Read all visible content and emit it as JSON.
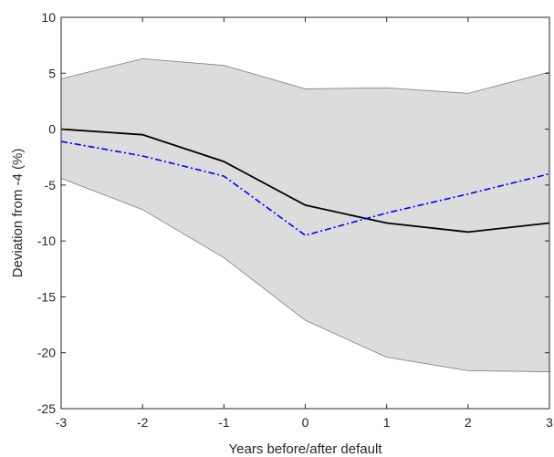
{
  "chart_data": {
    "type": "line",
    "title": "",
    "xlabel": "Years before/after default",
    "ylabel": "Deviation from -4 (%)",
    "xlim": [
      -3,
      3
    ],
    "ylim": [
      -25,
      10
    ],
    "x_ticks": [
      -3,
      -2,
      -1,
      0,
      1,
      2,
      3
    ],
    "y_ticks": [
      -25,
      -20,
      -15,
      -10,
      -5,
      0,
      5,
      10
    ],
    "x_tick_labels": [
      "-3",
      "-2",
      "-1",
      "0",
      "1",
      "2",
      "3"
    ],
    "y_tick_labels": [
      "-25",
      "-20",
      "-15",
      "-10",
      "-5",
      "0",
      "5",
      "10"
    ],
    "grid": false,
    "x": [
      -3,
      -2,
      -1,
      0,
      1,
      2,
      3
    ],
    "band": {
      "upper": [
        4.5,
        6.3,
        5.7,
        3.6,
        3.7,
        3.2,
        5.1
      ],
      "lower": [
        -4.4,
        -7.2,
        -11.5,
        -17.1,
        -20.4,
        -21.6,
        -21.7
      ],
      "fill_color": "#dcdcdc",
      "edge_color": "#808080"
    },
    "series": [
      {
        "values": [
          0.0,
          -0.5,
          -2.9,
          -6.8,
          -8.4,
          -9.2,
          -8.4
        ],
        "color": "#000000",
        "style": "solid"
      },
      {
        "values": [
          -1.1,
          -2.4,
          -4.2,
          -9.5,
          -7.5,
          -5.8,
          -4.0
        ],
        "color": "#0000ff",
        "style": "dash-dot"
      }
    ]
  }
}
